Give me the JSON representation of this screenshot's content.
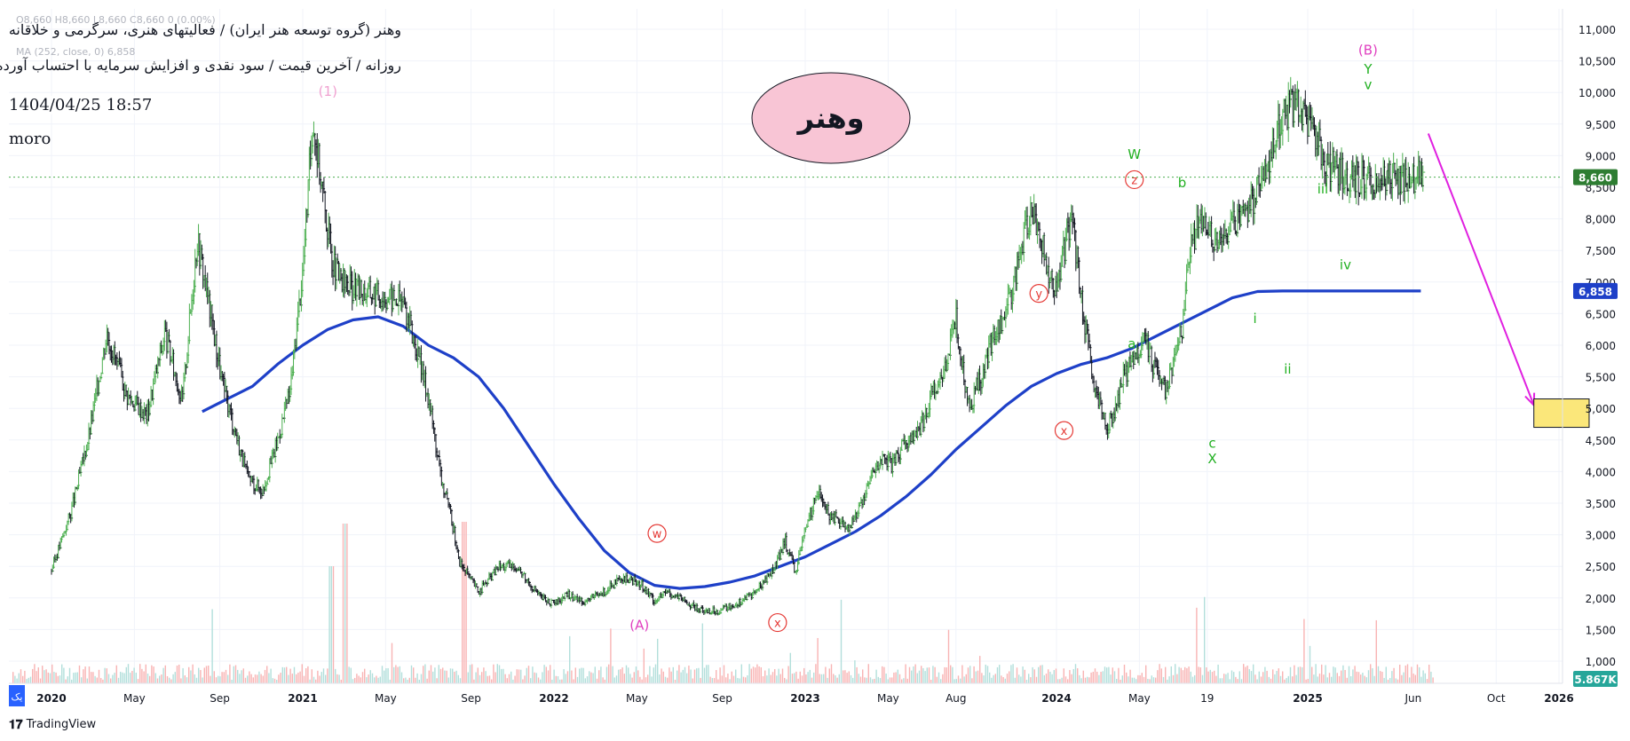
{
  "header": {
    "title": "وهنر (گروه توسعه هنر ایران) / فعالیتهای هنری، سرگرمی و خلاقانه",
    "subtitle": "روزانه / آخرین قیمت / سود نقدی و افزایش سرمایه با احتساب آورده",
    "ohlc_faint": "O8,660  H8,660  L8,660  C8,660  0 (0.00%)",
    "ma_faint": "MA (252, close, 0)  6,858",
    "date": "1404/04/25 18:57",
    "author": "moro"
  },
  "badge": {
    "text": "وهنر",
    "color": "#f8c5d5"
  },
  "footer": {
    "brand": "TradingView",
    "corner_tag": "یک"
  },
  "colors": {
    "up": "#4caf50",
    "down": "#131722",
    "ma": "#1e40c8",
    "arrow": "#e020e0",
    "label_green": "#22b022",
    "label_pink": "#e040c0",
    "label_red": "#e53935",
    "price_tag": "#2e7d32",
    "ma_tag": "#1e40c8",
    "vol_tag": "#26a69a"
  },
  "chart_data": {
    "type": "line",
    "title": "",
    "xlabel": "",
    "ylabel": "",
    "x_ticks": [
      "2020",
      "May",
      "Sep",
      "2021",
      "May",
      "Sep",
      "2022",
      "May",
      "Sep",
      "2023",
      "May",
      "Aug",
      "2024",
      "May",
      "19",
      "2025",
      "Jun",
      "Oct",
      "2026"
    ],
    "y_ticks": [
      "1,000",
      "1,500",
      "2,000",
      "2,500",
      "3,000",
      "3,500",
      "4,000",
      "4,500",
      "5,000",
      "5,500",
      "6,000",
      "6,500",
      "7,000",
      "7,500",
      "8,000",
      "8,500",
      "9,000",
      "9,500",
      "10,000",
      "10,500",
      "11,000"
    ],
    "ylim": [
      750,
      11100
    ],
    "xlim": [
      2019.99,
      2026.12
    ],
    "scale": "linear",
    "grid": true,
    "last_price": "8,660",
    "ma_value": "6,858",
    "volume_value": "5.867K",
    "series": [
      {
        "kind": "price",
        "x": [
          2020.0,
          2020.08,
          2020.15,
          2020.22,
          2020.3,
          2020.38,
          2020.45,
          2020.52,
          2020.58,
          2020.62,
          2020.68,
          2020.72,
          2020.78,
          2020.84,
          2020.9,
          2020.95,
          2021.0,
          2021.04,
          2021.08,
          2021.1,
          2021.12,
          2021.15,
          2021.2,
          2021.3,
          2021.4,
          2021.5,
          2021.55,
          2021.6,
          2021.62,
          2021.65,
          2021.7,
          2021.78,
          2021.85,
          2021.9,
          2021.95,
          2022.0,
          2022.05,
          2022.12,
          2022.18,
          2022.25,
          2022.3,
          2022.35,
          2022.4,
          2022.45,
          2022.5,
          2022.58,
          2022.65,
          2022.72,
          2022.8,
          2022.88,
          2022.92,
          2022.96,
          2023.0,
          2023.05,
          2023.1,
          2023.18,
          2023.25,
          2023.3,
          2023.35,
          2023.4,
          2023.45,
          2023.5,
          2023.55,
          2023.6,
          2023.65,
          2023.7,
          2023.75,
          2023.8,
          2023.85,
          2023.9,
          2023.94,
          2023.97,
          2024.0,
          2024.03,
          2024.06,
          2024.1,
          2024.15,
          2024.2,
          2024.23,
          2024.26,
          2024.3,
          2024.35,
          2024.4,
          2024.43,
          2024.46,
          2024.5,
          2024.53,
          2024.57,
          2024.6,
          2024.65,
          2024.7,
          2024.75,
          2024.8,
          2024.85,
          2024.9,
          2024.95,
          2025.0,
          2025.03,
          2025.06,
          2025.1,
          2025.15,
          2025.2,
          2025.24,
          2025.27,
          2025.3,
          2025.33,
          2025.35,
          2025.37,
          2025.39,
          2025.41,
          2025.43,
          2025.45,
          2025.47
        ],
        "y": [
          2450,
          3400,
          4600,
          6200,
          5200,
          4900,
          6200,
          5100,
          7700,
          6800,
          5400,
          4800,
          3900,
          3700,
          4500,
          5300,
          7200,
          9600,
          8400,
          7800,
          7300,
          7000,
          6900,
          6800,
          6700,
          5200,
          3900,
          3100,
          2600,
          2400,
          2100,
          2500,
          2500,
          2250,
          2000,
          1900,
          2050,
          1950,
          2050,
          2250,
          2300,
          2200,
          1950,
          2100,
          2000,
          1800,
          1800,
          1900,
          2100,
          2500,
          2900,
          2400,
          3100,
          3700,
          3300,
          3100,
          3800,
          4200,
          4100,
          4500,
          4600,
          5200,
          5600,
          6400,
          5000,
          5500,
          6200,
          6500,
          7400,
          8200,
          7700,
          7000,
          6900,
          7500,
          8100,
          6700,
          5300,
          4700,
          4900,
          5400,
          5800,
          6100,
          5500,
          5300,
          5600,
          6300,
          7500,
          8000,
          7800,
          7600,
          7900,
          8000,
          8500,
          9000,
          9600,
          9800,
          9500,
          9300,
          9000,
          8800,
          8700,
          8660,
          8660,
          8660,
          8660,
          8660,
          8660,
          8660,
          8660,
          8660,
          8660,
          8660,
          8660
        ]
      },
      {
        "kind": "ma",
        "name": "MA (252, close, 0)",
        "x": [
          2020.6,
          2020.7,
          2020.8,
          2020.9,
          2021.0,
          2021.1,
          2021.2,
          2021.3,
          2021.4,
          2021.5,
          2021.6,
          2021.7,
          2021.8,
          2021.9,
          2022.0,
          2022.1,
          2022.2,
          2022.3,
          2022.4,
          2022.5,
          2022.6,
          2022.7,
          2022.8,
          2022.9,
          2023.0,
          2023.1,
          2023.2,
          2023.3,
          2023.4,
          2023.5,
          2023.6,
          2023.7,
          2023.8,
          2023.9,
          2024.0,
          2024.1,
          2024.2,
          2024.3,
          2024.4,
          2024.5,
          2024.6,
          2024.7,
          2024.8,
          2024.9,
          2025.0,
          2025.1,
          2025.2,
          2025.3,
          2025.4,
          2025.45
        ],
        "y": [
          4950,
          5150,
          5350,
          5700,
          6000,
          6250,
          6400,
          6450,
          6300,
          6000,
          5800,
          5500,
          5000,
          4400,
          3800,
          3250,
          2750,
          2400,
          2200,
          2150,
          2180,
          2250,
          2350,
          2500,
          2650,
          2850,
          3050,
          3300,
          3600,
          3950,
          4350,
          4700,
          5050,
          5350,
          5550,
          5700,
          5800,
          5950,
          6150,
          6350,
          6550,
          6750,
          6850,
          6858,
          6858,
          6858,
          6858,
          6858,
          6858,
          6858
        ]
      }
    ],
    "projection": {
      "x": [
        2025.48,
        2025.9
      ],
      "y": [
        9350,
        5050
      ]
    },
    "target_box": {
      "x": [
        2025.9,
        2026.12
      ],
      "y": [
        4700,
        5150
      ],
      "color": "#fbe77a"
    },
    "annotations": [
      {
        "text": "(1)",
        "x": 2021.1,
        "y": 9950,
        "color": "#f0a0d0",
        "circled": false
      },
      {
        "text": "(A)",
        "x": 2022.34,
        "y": 1500,
        "color": "#e040c0",
        "circled": false
      },
      {
        "text": "w",
        "x": 2022.41,
        "y": 2950,
        "color": "#e53935",
        "circled": true
      },
      {
        "text": "x",
        "x": 2022.89,
        "y": 1540,
        "color": "#e53935",
        "circled": true
      },
      {
        "text": "y",
        "x": 2023.93,
        "y": 6750,
        "color": "#e53935",
        "circled": true
      },
      {
        "text": "x",
        "x": 2024.03,
        "y": 4580,
        "color": "#e53935",
        "circled": true
      },
      {
        "text": "z",
        "x": 2024.31,
        "y": 8550,
        "color": "#e53935",
        "circled": true
      },
      {
        "text": "W",
        "x": 2024.31,
        "y": 8950,
        "color": "#22b022",
        "circled": false
      },
      {
        "text": "a",
        "x": 2024.3,
        "y": 5950,
        "color": "#22b022",
        "circled": false
      },
      {
        "text": "b",
        "x": 2024.5,
        "y": 8500,
        "color": "#22b022",
        "circled": false
      },
      {
        "text": "c",
        "x": 2024.62,
        "y": 4380,
        "color": "#22b022",
        "circled": false
      },
      {
        "text": "X",
        "x": 2024.62,
        "y": 4130,
        "color": "#22b022",
        "circled": false
      },
      {
        "text": "i",
        "x": 2024.79,
        "y": 6350,
        "color": "#22b022",
        "circled": false
      },
      {
        "text": "ii",
        "x": 2024.92,
        "y": 5550,
        "color": "#22b022",
        "circled": false
      },
      {
        "text": "iii",
        "x": 2025.06,
        "y": 8400,
        "color": "#22b022",
        "circled": false
      },
      {
        "text": "iv",
        "x": 2025.15,
        "y": 7200,
        "color": "#22b022",
        "circled": false
      },
      {
        "text": "v",
        "x": 2025.24,
        "y": 10050,
        "color": "#22b022",
        "circled": false
      },
      {
        "text": "Y",
        "x": 2025.24,
        "y": 10300,
        "color": "#22b022",
        "circled": false
      },
      {
        "text": "(B)",
        "x": 2025.24,
        "y": 10600,
        "color": "#e040c0",
        "circled": false
      }
    ],
    "legend": "top-left"
  }
}
